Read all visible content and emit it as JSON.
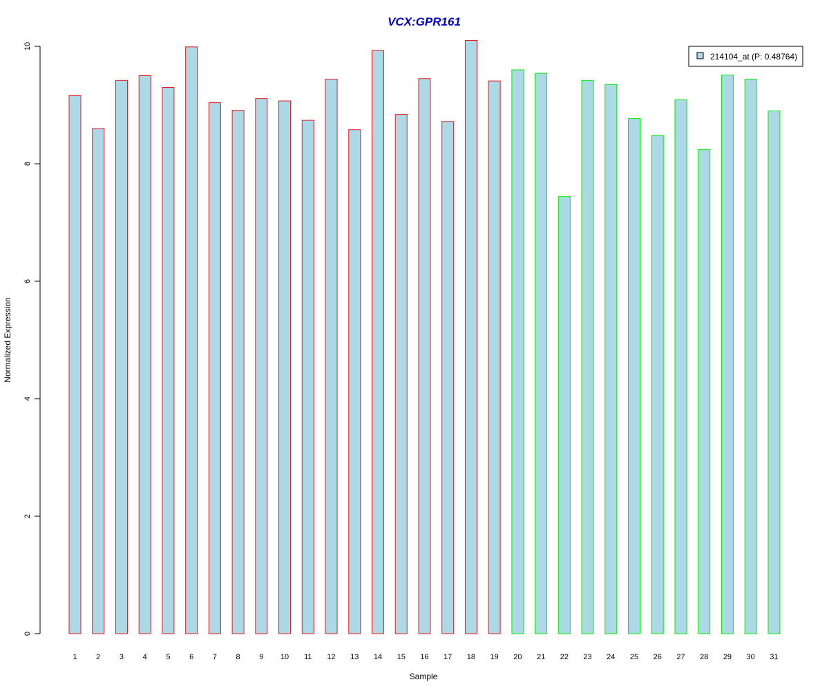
{
  "chart_data": {
    "type": "bar",
    "title": "VCX:GPR161",
    "xlabel": "Sample",
    "ylabel": "Normalized Expression",
    "ylim": [
      0,
      10
    ],
    "yticks": [
      "0",
      "2",
      "4",
      "6",
      "8",
      "10"
    ],
    "categories": [
      "1",
      "2",
      "3",
      "4",
      "5",
      "6",
      "7",
      "8",
      "9",
      "10",
      "11",
      "12",
      "13",
      "14",
      "15",
      "16",
      "17",
      "18",
      "19",
      "20",
      "21",
      "22",
      "23",
      "24",
      "25",
      "26",
      "27",
      "28",
      "29",
      "30",
      "31"
    ],
    "series": [
      {
        "name": "214104_at (P: 0.48764)",
        "values": [
          9.16,
          8.6,
          9.42,
          9.5,
          9.3,
          9.99,
          9.04,
          8.91,
          9.11,
          9.07,
          8.74,
          9.44,
          8.58,
          9.93,
          8.84,
          9.45,
          8.72,
          10.1,
          9.41,
          9.6,
          9.54,
          7.44,
          9.42,
          9.35,
          8.77,
          8.48,
          9.09,
          8.24,
          9.51,
          9.44,
          8.9
        ],
        "fill": "#add8e6"
      }
    ],
    "groups": [
      {
        "samples": [
          1,
          19
        ],
        "border_color": "#e41a1c"
      },
      {
        "samples": [
          20,
          31
        ],
        "border_color": "#00ee00"
      }
    ],
    "title_color": "#0000cc",
    "legend_position": "top-right",
    "grid": false
  }
}
